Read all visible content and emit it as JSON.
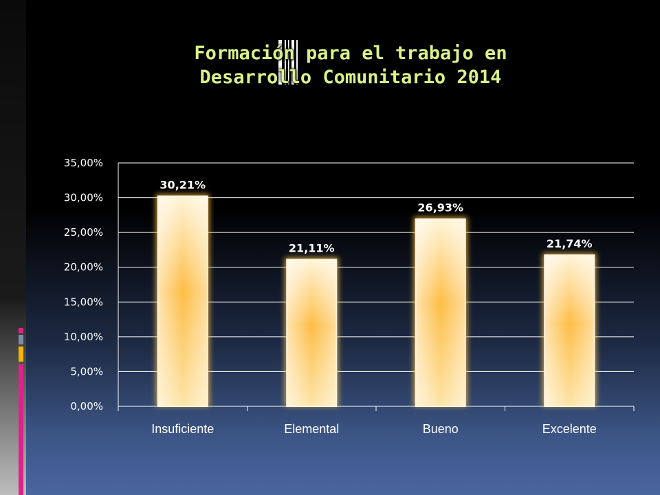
{
  "slide": {
    "title_line1": "Formación para el trabajo en",
    "title_line2": "Desarrollo Comunitario 2014",
    "accent_colors": [
      "#e0218a",
      "#7a8fa6",
      "#f4b400",
      "#e0218a"
    ]
  },
  "chart_data": {
    "type": "bar",
    "categories": [
      "Insuficiente",
      "Elemental",
      "Bueno",
      "Excelente"
    ],
    "values": [
      30.21,
      21.11,
      26.93,
      21.74
    ],
    "data_labels": [
      "30,21%",
      "21,11%",
      "26,93%",
      "21,74%"
    ],
    "y_ticks": [
      "0,00%",
      "5,00%",
      "10,00%",
      "15,00%",
      "20,00%",
      "25,00%",
      "30,00%",
      "35,00%"
    ],
    "ylim": [
      0,
      35
    ],
    "grid": true,
    "bar_color": "#fdbd45",
    "bar_highlight": "#fff6df",
    "text_color": "#ffffff",
    "axis_color": "#ffffff"
  }
}
